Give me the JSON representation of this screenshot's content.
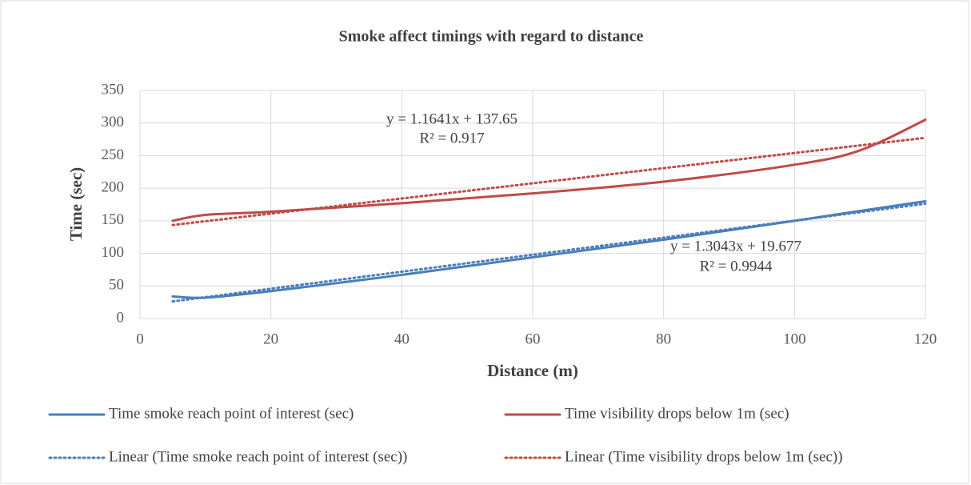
{
  "chart_data": {
    "type": "line",
    "title": "Smoke affect timings with regard to distance",
    "x_label": "Distance (m)",
    "y_label": "Time (sec)",
    "xlim": [
      0,
      120
    ],
    "xticks": [
      0,
      20,
      40,
      60,
      80,
      100,
      120
    ],
    "ylim": [
      0,
      350
    ],
    "yticks": [
      0,
      50,
      100,
      150,
      200,
      250,
      300,
      350
    ],
    "grid": true,
    "legend": "bottom",
    "series": [
      {
        "name": "Time smoke reach point of interest (sec)",
        "color": "#4a7ebb",
        "style": "solid",
        "x": [
          5,
          10,
          20,
          40,
          60,
          80,
          100,
          110,
          120
        ],
        "values": [
          34,
          32,
          42,
          67,
          94,
          121,
          150,
          165,
          180
        ]
      },
      {
        "name": "Time visibility drops below 1m (sec)",
        "color": "#be4b48",
        "style": "solid",
        "x": [
          5,
          10,
          20,
          40,
          60,
          80,
          100,
          110,
          120
        ],
        "values": [
          150,
          159,
          164,
          177,
          192,
          210,
          236,
          258,
          305
        ]
      },
      {
        "name": "Linear (Time smoke reach point of interest (sec))",
        "color": "#4a7ebb",
        "style": "dotted",
        "x": [
          5,
          120
        ],
        "values": [
          26.2,
          176.2
        ]
      },
      {
        "name": "Linear (Time visibility drops below 1m (sec))",
        "color": "#be4b48",
        "style": "dotted",
        "x": [
          5,
          120
        ],
        "values": [
          143.5,
          277.3
        ]
      }
    ],
    "annotations": [
      "y = 1.1641x + 137.65",
      "R² = 0.917",
      "y = 1.3043x + 19.677",
      "R² = 0.9944"
    ]
  }
}
